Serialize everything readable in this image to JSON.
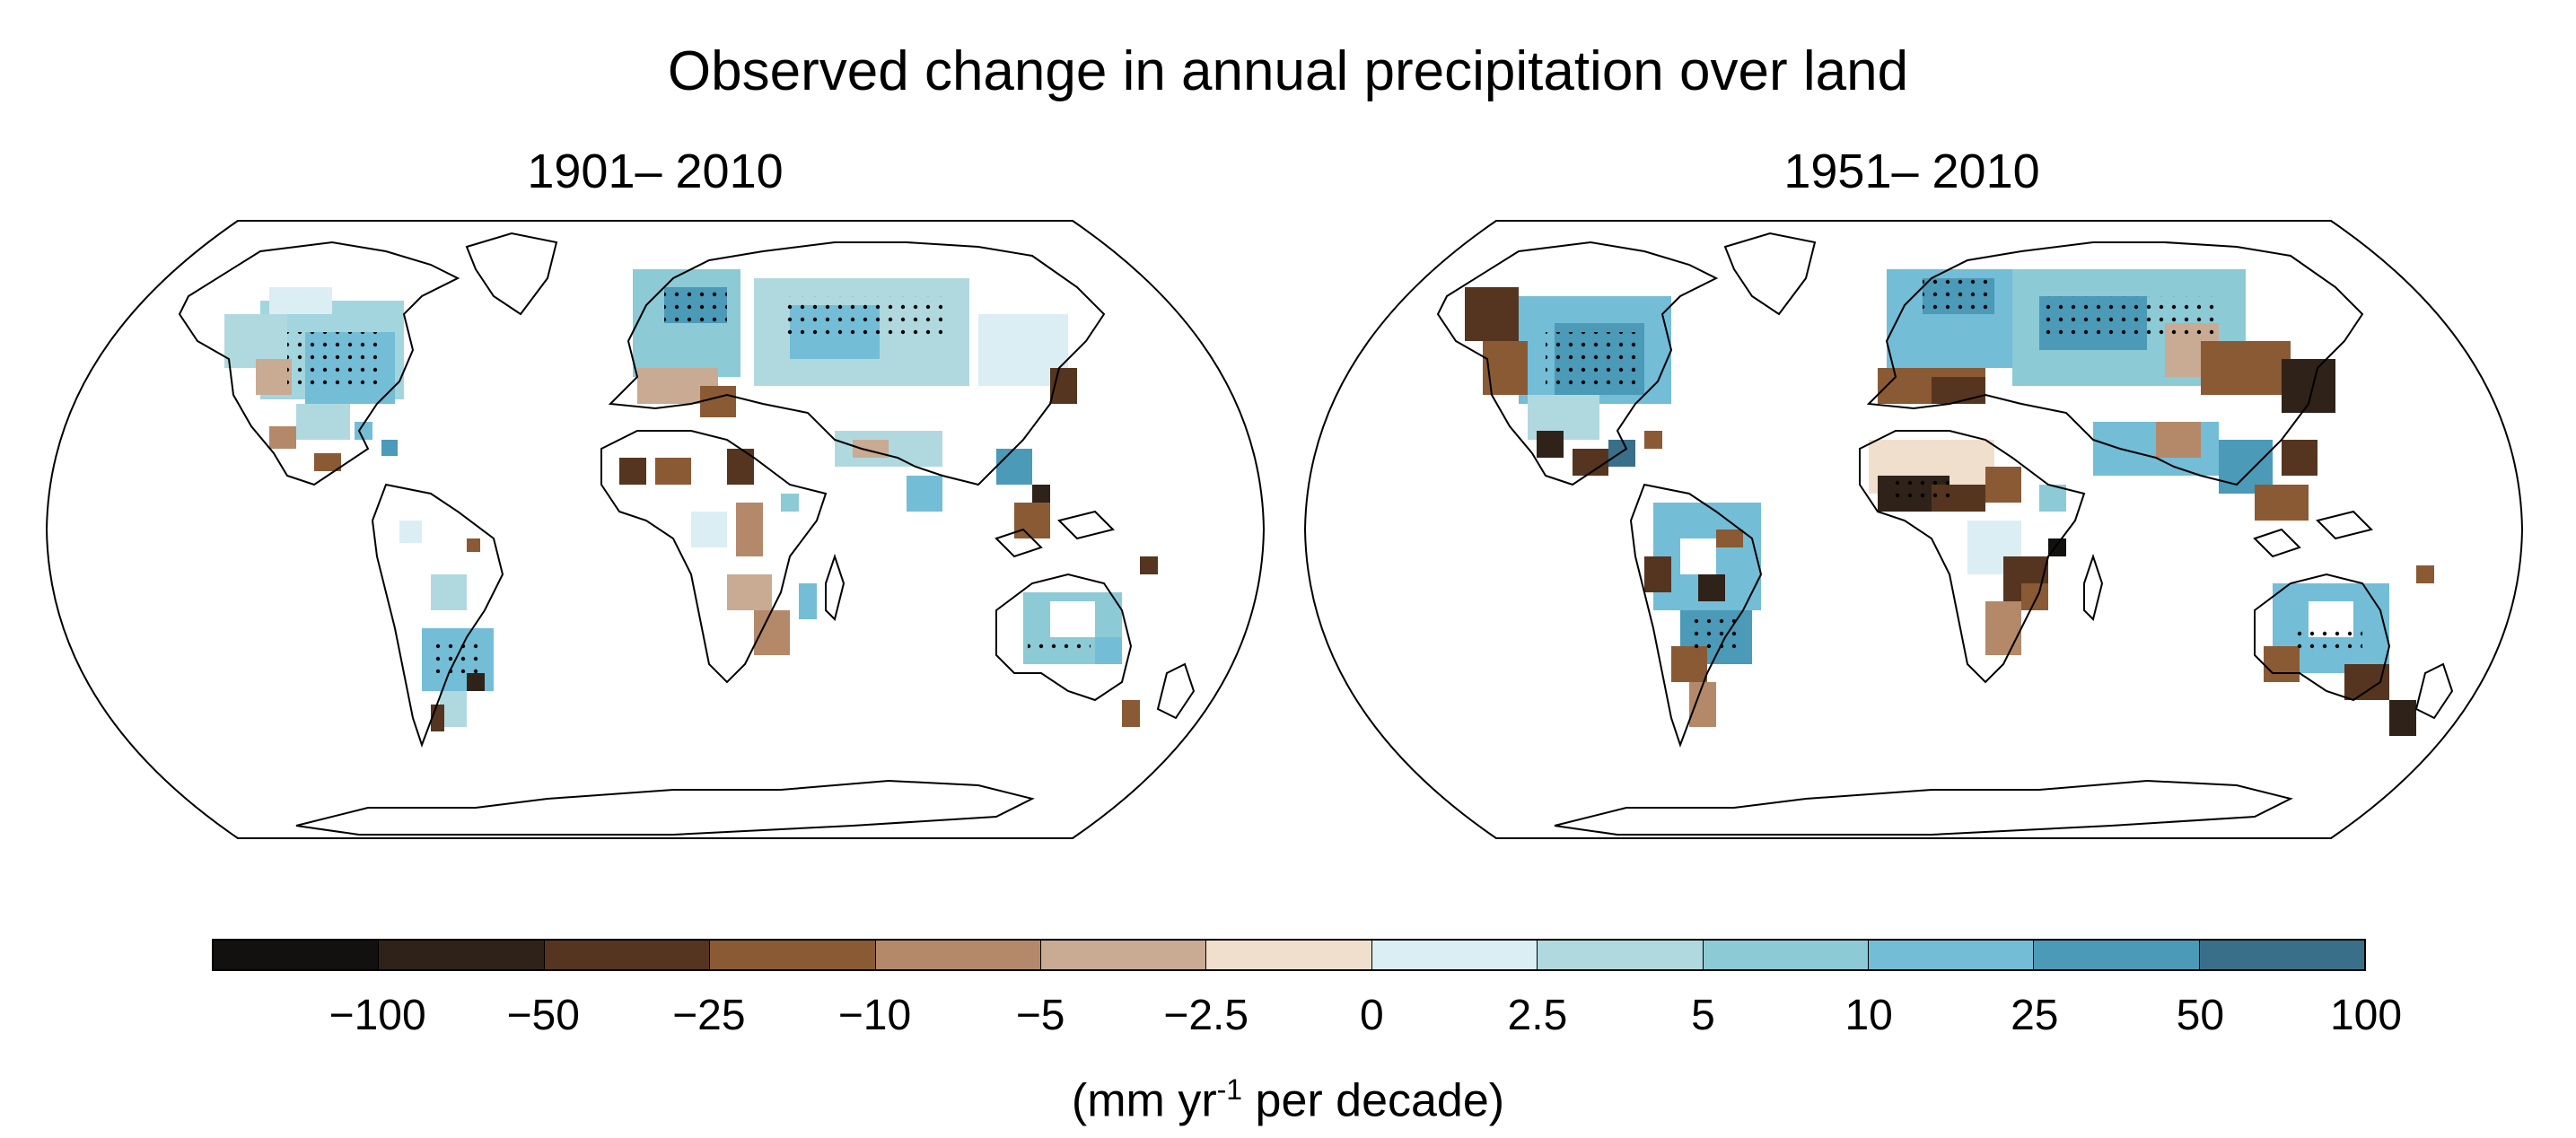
{
  "title": "Observed change in annual precipitation over land",
  "panels": [
    {
      "label": "1901– 2010"
    },
    {
      "label": "1951– 2010"
    }
  ],
  "colorbar": {
    "colors": [
      "#121110",
      "#2f2219",
      "#55351f",
      "#8a5a34",
      "#b3896a",
      "#c9aa92",
      "#f1dfcd",
      "#dbeef3",
      "#b0d9df",
      "#8ccad6",
      "#73bdd7",
      "#4a9ab8",
      "#3a6f89"
    ],
    "ticks": [
      "−100",
      "−50",
      "−25",
      "−10",
      "−5",
      "−2.5",
      "0",
      "2.5",
      "5",
      "10",
      "25",
      "50",
      "100"
    ]
  },
  "units": {
    "prefix": "(mm yr",
    "exponent": "-1",
    "suffix": " per decade)"
  }
}
